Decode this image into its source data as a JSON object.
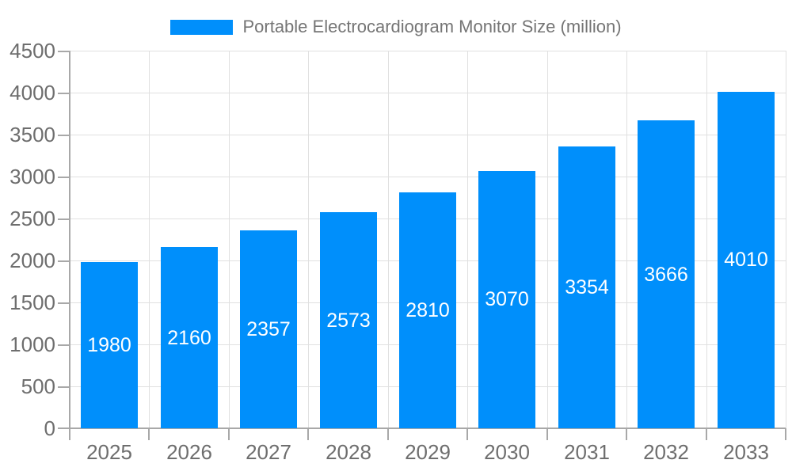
{
  "colors": {
    "bar": "#008FFB",
    "grid": "#e0e0e0",
    "axis": "#a8a8a8",
    "axis_label": "#6e6e6e",
    "value_label": "#ffffff",
    "legend_text": "#757575",
    "background": "#ffffff"
  },
  "legend": {
    "label": "Portable Electrocardiogram Monitor Size (million)",
    "position": "top-center"
  },
  "chart_data": {
    "type": "bar",
    "title": "Portable Electrocardiogram Monitor Size (million)",
    "categories": [
      "2025",
      "2026",
      "2027",
      "2028",
      "2029",
      "2030",
      "2031",
      "2032",
      "2033"
    ],
    "series": [
      {
        "name": "Portable Electrocardiogram Monitor Size (million)",
        "values": [
          1980,
          2160,
          2357,
          2573,
          2810,
          3070,
          3354,
          3666,
          4010
        ]
      }
    ],
    "xlabel": "",
    "ylabel": "",
    "ylim": [
      0,
      4500
    ],
    "ytick_step": 500,
    "ytick_labels": [
      "0",
      "500",
      "1000",
      "1500",
      "2000",
      "2500",
      "3000",
      "3500",
      "4000",
      "4500"
    ],
    "grid": "horizontal and vertical light gray lines, plot framed by left/bottom gray axes",
    "legend_position": "top-center",
    "value_labels_position": "inside-center-white"
  }
}
